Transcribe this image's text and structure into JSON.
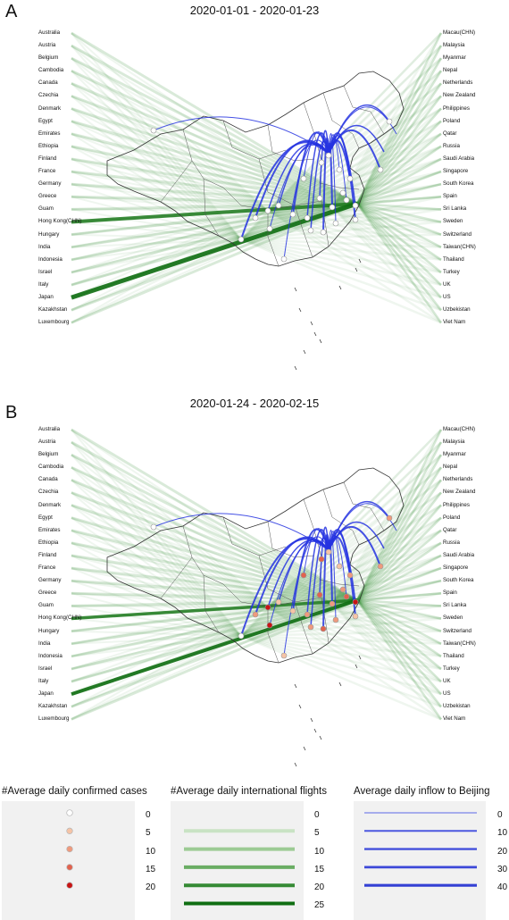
{
  "panel_a": {
    "label": "A",
    "date_range": "2020-01-01 - 2020-01-23"
  },
  "panel_b": {
    "label": "B",
    "date_range": "2020-01-24 - 2020-02-15"
  },
  "countries_left": [
    "Australia",
    "Austria",
    "Belgium",
    "Cambodia",
    "Canada",
    "Czechia",
    "Denmark",
    "Egypt",
    "Emirates",
    "Ethiopia",
    "Finland",
    "France",
    "Germany",
    "Greece",
    "Guam",
    "Hong Kong(CHN)",
    "Hungary",
    "India",
    "Indonesia",
    "Israel",
    "Italy",
    "Japan",
    "Kazakhstan",
    "Luxembourg"
  ],
  "countries_right": [
    "Macau(CHN)",
    "Malaysia",
    "Myanmar",
    "Nepal",
    "Netherlands",
    "New Zealand",
    "Philippines",
    "Poland",
    "Qatar",
    "Russia",
    "Saudi Arabia",
    "Singapore",
    "South Korea",
    "Spain",
    "Sri Lanka",
    "Sweden",
    "Switzerland",
    "Taiwan(CHN)",
    "Thailand",
    "Turkey",
    "UK",
    "US",
    "Uzbekistan",
    "Viet Nam"
  ],
  "legend": {
    "cases": {
      "title": "#Average daily confirmed cases",
      "values": [
        "0",
        "5",
        "10",
        "15",
        "20"
      ],
      "colors": [
        "#ffffff",
        "#f6c4a6",
        "#ef9a7d",
        "#e2624e",
        "#c81414"
      ]
    },
    "flights": {
      "title": "#Average daily international flights",
      "values": [
        "0",
        "5",
        "10",
        "15",
        "20",
        "25"
      ],
      "colors": [
        "#ffffff",
        "#c9e3c4",
        "#9ccb94",
        "#6aad64",
        "#358a34",
        "#0f6e12"
      ]
    },
    "inflow": {
      "title": "Average daily inflow to Beijing",
      "values": [
        "0",
        "10",
        "20",
        "30",
        "40"
      ],
      "colors": [
        "#5a67e6",
        "#4c58e0",
        "#4450dc",
        "#3c48d8",
        "#3440d4"
      ]
    }
  },
  "colors": {
    "flight_line": "#2e8b2e",
    "inflow_line": "#2433e0",
    "map_border": "#333333"
  }
}
